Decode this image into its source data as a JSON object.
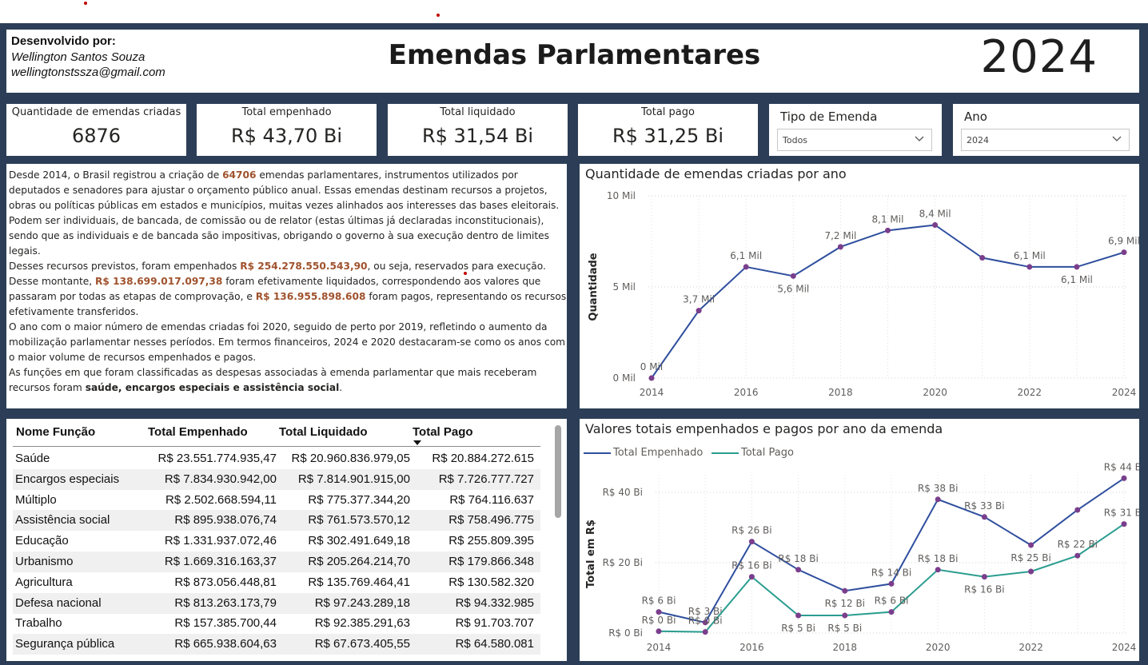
{
  "header": {
    "developer_label": "Desenvolvido por:",
    "developer_name": "Wellington Santos Souza",
    "developer_email": "wellingtonstssza@gmail.com",
    "title": "Emendas Parlamentares",
    "year": "2024"
  },
  "kpis": [
    {
      "label": "Quantidade de emendas criadas",
      "value": "6876"
    },
    {
      "label": "Total empenhado",
      "value": "R$ 43,70 Bi"
    },
    {
      "label": "Total liquidado",
      "value": "R$ 31,54 Bi"
    },
    {
      "label": "Total pago",
      "value": "R$ 31,25 Bi"
    }
  ],
  "slicers": {
    "tipo": {
      "title": "Tipo de Emenda",
      "value": "Todos",
      "icon": "chevron-down-icon"
    },
    "ano": {
      "title": "Ano",
      "value": "2024",
      "icon": "chevron-down-icon"
    }
  },
  "summary": {
    "p1a": "Desde 2014, o Brasil registrou a criação de ",
    "p1_count": "64706",
    "p1b": " emendas parlamentares, instrumentos utilizados por deputados e senadores para ajustar o orçamento público anual. Essas emendas destinam recursos a projetos, obras ou políticas públicas em estados e municípios, muitas vezes alinhados aos interesses das bases eleitorais. Podem ser individuais, de bancada, de comissão ou de relator (estas últimas já declaradas inconstitucionais), sendo que as individuais e de bancada são impositivas, obrigando o governo à sua execução dentro de limites legais.",
    "p2a": "Desses recursos previstos, foram empenhados ",
    "p2_emp": "R$ 254.278.550.543,90",
    "p2b": ", ou seja, reservados para execução. Desse montante, ",
    "p2_liq": "R$ 138.699.017.097,38",
    "p2c": " foram efetivamente liquidados, correspondendo aos valores que passaram por todas as etapas de comprovação, e ",
    "p2_pago": "R$ 136.955.898.608",
    "p2d": " foram pagos, representando os recursos efetivamente transferidos.",
    "p3": "O ano com o maior número de emendas criadas foi 2020, seguido de perto por 2019, refletindo o aumento da mobilização parlamentar nesses períodos. Em termos financeiros, 2024 e 2020 destacaram-se como os anos com o maior volume de recursos empenhados e pagos.",
    "p4a": "As funções em que foram classificadas as despesas associadas à emenda parlamentar que mais receberam recursos foram ",
    "p4_funcs": "saúde, encargos especiais e assistência social",
    "p4b": "."
  },
  "table": {
    "columns": [
      "Nome Função",
      "Total Empenhado",
      "Total Liquidado",
      "Total Pago"
    ],
    "sort_icon": "sort-desc-icon",
    "rows": [
      [
        "Saúde",
        "R$ 23.551.774.935,47",
        "R$ 20.960.836.979,05",
        "R$ 20.884.272.615"
      ],
      [
        "Encargos especiais",
        "R$ 7.834.930.942,00",
        "R$ 7.814.901.915,00",
        "R$ 7.726.777.727"
      ],
      [
        "Múltiplo",
        "R$ 2.502.668.594,11",
        "R$ 775.377.344,20",
        "R$ 764.116.637"
      ],
      [
        "Assistência social",
        "R$ 895.938.076,74",
        "R$ 761.573.570,12",
        "R$ 758.496.775"
      ],
      [
        "Educação",
        "R$ 1.331.937.072,46",
        "R$ 302.491.649,18",
        "R$ 255.809.395"
      ],
      [
        "Urbanismo",
        "R$ 1.669.316.163,37",
        "R$ 205.264.214,70",
        "R$ 179.866.348"
      ],
      [
        "Agricultura",
        "R$ 873.056.448,81",
        "R$ 135.769.464,41",
        "R$ 130.582.320"
      ],
      [
        "Defesa nacional",
        "R$ 813.263.173,79",
        "R$ 97.243.289,18",
        "R$ 94.332.985"
      ],
      [
        "Trabalho",
        "R$ 157.385.700,44",
        "R$ 92.385.291,63",
        "R$ 91.703.707"
      ],
      [
        "Segurança pública",
        "R$ 665.938.604,63",
        "R$ 67.673.405,55",
        "R$ 64.580.081"
      ]
    ]
  },
  "chart_data": [
    {
      "type": "line",
      "title": "Quantidade de emendas criadas por ano",
      "xlabel": "",
      "ylabel": "Quantidade",
      "x": [
        2014,
        2015,
        2016,
        2017,
        2018,
        2019,
        2020,
        2021,
        2022,
        2023,
        2024
      ],
      "series": [
        {
          "values": [
            0,
            3700,
            6100,
            5600,
            7200,
            8100,
            8400,
            6600,
            6100,
            6100,
            6900
          ],
          "color": "#2f4f9e"
        }
      ],
      "data_labels": [
        "0 Mil",
        "3,7 Mil",
        "6,1 Mil",
        "5,6 Mil",
        "7,2 Mil",
        "8,1 Mil",
        "8,4 Mil",
        "",
        "6,1 Mil",
        "6,1 Mil",
        "6,9 Mil"
      ],
      "label_below": [
        false,
        false,
        false,
        true,
        false,
        false,
        false,
        false,
        false,
        true,
        false
      ],
      "x_ticks": [
        "2014",
        "2016",
        "2018",
        "2020",
        "2022",
        "2024"
      ],
      "y_ticks": [
        {
          "v": 0,
          "t": "0 Mil"
        },
        {
          "v": 5000,
          "t": "5 Mil"
        },
        {
          "v": 10000,
          "t": "10 Mil"
        }
      ],
      "ylim": [
        0,
        10000
      ],
      "grid": true
    },
    {
      "type": "line",
      "title": "Valores totais empenhados e pagos por ano da emenda",
      "xlabel": "",
      "ylabel": "Total em R$",
      "x": [
        2014,
        2015,
        2016,
        2017,
        2018,
        2019,
        2020,
        2021,
        2022,
        2023,
        2024
      ],
      "series": [
        {
          "name": "Total Empenhado",
          "values": [
            6,
            3,
            26,
            18,
            12,
            14,
            38,
            33,
            25,
            35,
            44
          ],
          "color": "#2f4f9e",
          "labels": [
            "R$ 6 Bi",
            "R$ 3 Bi",
            "R$ 26 Bi",
            "R$ 18 Bi",
            "R$ 12 Bi",
            "R$ 14 Bi",
            "R$ 38 Bi",
            "R$ 33 Bi",
            "R$ 25 Bi",
            "",
            "R$ 44 Bi"
          ],
          "below": [
            false,
            false,
            false,
            false,
            true,
            false,
            false,
            false,
            true,
            false,
            false
          ]
        },
        {
          "name": "Total Pago",
          "values": [
            0.5,
            0.3,
            16,
            5,
            5,
            6,
            18,
            16,
            17.5,
            22,
            31
          ],
          "color": "#2a9d8f",
          "labels": [
            "R$ 0 Bi",
            "R$ 0 Bi",
            "R$ 16 Bi",
            "R$ 5 Bi",
            "R$ 5 Bi",
            "R$ 6 Bi",
            "R$ 18 Bi",
            "R$ 16 Bi",
            "",
            "R$ 22 Bi",
            "R$ 31 Bi"
          ],
          "below": [
            false,
            false,
            false,
            true,
            true,
            false,
            false,
            true,
            false,
            false,
            false
          ]
        }
      ],
      "x_ticks": [
        "2014",
        "2016",
        "2018",
        "2020",
        "2022",
        "2024"
      ],
      "y_ticks": [
        {
          "v": 0,
          "t": "R$ 0 Bi"
        },
        {
          "v": 20,
          "t": "R$ 20 Bi"
        },
        {
          "v": 40,
          "t": "R$ 40 Bi"
        }
      ],
      "ylim": [
        0,
        45
      ],
      "legend": "top-left",
      "grid": true
    }
  ]
}
